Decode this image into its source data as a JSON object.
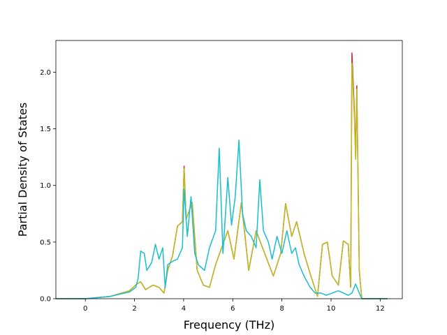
{
  "chart_data": {
    "type": "line",
    "title": "",
    "xlabel": "Frequency (THz)",
    "ylabel": "Partial Density of States",
    "xlim": [
      -1.2,
      12.9
    ],
    "ylim": [
      0.0,
      2.28
    ],
    "xticks": [
      0,
      2,
      4,
      6,
      8,
      10,
      12
    ],
    "xtick_labels": [
      "0",
      "2",
      "4",
      "6",
      "8",
      "10",
      "12"
    ],
    "yticks": [
      0.0,
      0.5,
      1.0,
      1.5,
      2.0
    ],
    "ytick_labels": [
      "0.0",
      "0.5",
      "1.0",
      "1.5",
      "2.0"
    ],
    "grid": false,
    "legend": "none",
    "series": [
      {
        "color": "#d62728",
        "points": [
          [
            -1.2,
            0
          ],
          [
            0,
            0
          ],
          [
            1,
            0.02
          ],
          [
            1.8,
            0.07
          ],
          [
            2.1,
            0.13
          ],
          [
            2.25,
            0.15
          ],
          [
            2.45,
            0.08
          ],
          [
            2.75,
            0.12
          ],
          [
            3.0,
            0.1
          ],
          [
            3.2,
            0.05
          ],
          [
            3.35,
            0.25
          ],
          [
            3.55,
            0.38
          ],
          [
            3.75,
            0.64
          ],
          [
            3.95,
            0.68
          ],
          [
            4.02,
            1.17
          ],
          [
            4.1,
            0.7
          ],
          [
            4.35,
            0.85
          ],
          [
            4.55,
            0.25
          ],
          [
            4.8,
            0.12
          ],
          [
            5.05,
            0.1
          ],
          [
            5.3,
            0.3
          ],
          [
            5.55,
            0.45
          ],
          [
            5.8,
            0.6
          ],
          [
            6.05,
            0.35
          ],
          [
            6.35,
            0.85
          ],
          [
            6.65,
            0.25
          ],
          [
            6.95,
            0.6
          ],
          [
            7.3,
            0.4
          ],
          [
            7.65,
            0.2
          ],
          [
            7.95,
            0.4
          ],
          [
            8.15,
            0.84
          ],
          [
            8.4,
            0.55
          ],
          [
            8.6,
            0.68
          ],
          [
            8.9,
            0.4
          ],
          [
            9.15,
            0.22
          ],
          [
            9.45,
            0.02
          ],
          [
            9.65,
            0.48
          ],
          [
            9.85,
            0.5
          ],
          [
            10.05,
            0.2
          ],
          [
            10.3,
            0.12
          ],
          [
            10.5,
            0.51
          ],
          [
            10.7,
            0.48
          ],
          [
            10.8,
            0.1
          ],
          [
            10.85,
            2.17
          ],
          [
            10.95,
            1.65
          ],
          [
            11.0,
            1.25
          ],
          [
            11.05,
            1.88
          ],
          [
            11.15,
            0.25
          ],
          [
            11.25,
            0
          ],
          [
            12.3,
            0
          ]
        ]
      },
      {
        "color": "#bcbd22",
        "points": [
          [
            -1.2,
            0
          ],
          [
            0,
            0
          ],
          [
            1,
            0.02
          ],
          [
            1.8,
            0.07
          ],
          [
            2.1,
            0.13
          ],
          [
            2.25,
            0.15
          ],
          [
            2.45,
            0.08
          ],
          [
            2.75,
            0.12
          ],
          [
            3.0,
            0.1
          ],
          [
            3.2,
            0.05
          ],
          [
            3.35,
            0.25
          ],
          [
            3.55,
            0.38
          ],
          [
            3.75,
            0.64
          ],
          [
            3.95,
            0.68
          ],
          [
            4.02,
            1.15
          ],
          [
            4.1,
            0.7
          ],
          [
            4.35,
            0.85
          ],
          [
            4.55,
            0.25
          ],
          [
            4.8,
            0.12
          ],
          [
            5.05,
            0.1
          ],
          [
            5.3,
            0.3
          ],
          [
            5.55,
            0.45
          ],
          [
            5.8,
            0.6
          ],
          [
            6.05,
            0.35
          ],
          [
            6.35,
            0.85
          ],
          [
            6.65,
            0.25
          ],
          [
            6.95,
            0.6
          ],
          [
            7.3,
            0.4
          ],
          [
            7.65,
            0.2
          ],
          [
            7.95,
            0.4
          ],
          [
            8.15,
            0.84
          ],
          [
            8.4,
            0.55
          ],
          [
            8.6,
            0.68
          ],
          [
            8.9,
            0.4
          ],
          [
            9.15,
            0.22
          ],
          [
            9.45,
            0.02
          ],
          [
            9.65,
            0.48
          ],
          [
            9.85,
            0.5
          ],
          [
            10.05,
            0.2
          ],
          [
            10.3,
            0.12
          ],
          [
            10.5,
            0.51
          ],
          [
            10.7,
            0.48
          ],
          [
            10.8,
            0.1
          ],
          [
            10.85,
            2.08
          ],
          [
            10.95,
            1.6
          ],
          [
            11.0,
            1.23
          ],
          [
            11.05,
            1.85
          ],
          [
            11.15,
            0.25
          ],
          [
            11.25,
            0
          ],
          [
            12.3,
            0
          ]
        ]
      },
      {
        "color": "#17becf",
        "points": [
          [
            -1.2,
            0
          ],
          [
            0,
            0
          ],
          [
            1,
            0.02
          ],
          [
            1.8,
            0.06
          ],
          [
            2.05,
            0.1
          ],
          [
            2.15,
            0.18
          ],
          [
            2.25,
            0.42
          ],
          [
            2.4,
            0.4
          ],
          [
            2.5,
            0.25
          ],
          [
            2.7,
            0.32
          ],
          [
            2.85,
            0.48
          ],
          [
            3.0,
            0.35
          ],
          [
            3.15,
            0.45
          ],
          [
            3.25,
            0.1
          ],
          [
            3.35,
            0.3
          ],
          [
            3.55,
            0.33
          ],
          [
            3.75,
            0.35
          ],
          [
            3.95,
            0.45
          ],
          [
            4.02,
            0.97
          ],
          [
            4.15,
            0.55
          ],
          [
            4.3,
            0.9
          ],
          [
            4.45,
            0.4
          ],
          [
            4.6,
            0.3
          ],
          [
            4.85,
            0.25
          ],
          [
            5.05,
            0.45
          ],
          [
            5.3,
            0.6
          ],
          [
            5.45,
            1.33
          ],
          [
            5.6,
            0.4
          ],
          [
            5.8,
            1.07
          ],
          [
            5.95,
            0.65
          ],
          [
            6.1,
            0.9
          ],
          [
            6.25,
            1.4
          ],
          [
            6.4,
            0.75
          ],
          [
            6.55,
            0.6
          ],
          [
            6.75,
            0.55
          ],
          [
            6.95,
            0.45
          ],
          [
            7.1,
            1.05
          ],
          [
            7.25,
            0.6
          ],
          [
            7.45,
            0.5
          ],
          [
            7.6,
            0.35
          ],
          [
            7.8,
            0.55
          ],
          [
            8.0,
            0.4
          ],
          [
            8.2,
            0.6
          ],
          [
            8.4,
            0.4
          ],
          [
            8.55,
            0.45
          ],
          [
            8.7,
            0.3
          ],
          [
            8.9,
            0.2
          ],
          [
            9.15,
            0.1
          ],
          [
            9.35,
            0.05
          ],
          [
            9.6,
            0.05
          ],
          [
            9.8,
            0.03
          ],
          [
            10.05,
            0.05
          ],
          [
            10.3,
            0.07
          ],
          [
            10.5,
            0.05
          ],
          [
            10.7,
            0.03
          ],
          [
            10.85,
            0.05
          ],
          [
            11.0,
            0.13
          ],
          [
            11.15,
            0.05
          ],
          [
            11.25,
            0
          ],
          [
            12.3,
            0
          ]
        ]
      }
    ]
  }
}
